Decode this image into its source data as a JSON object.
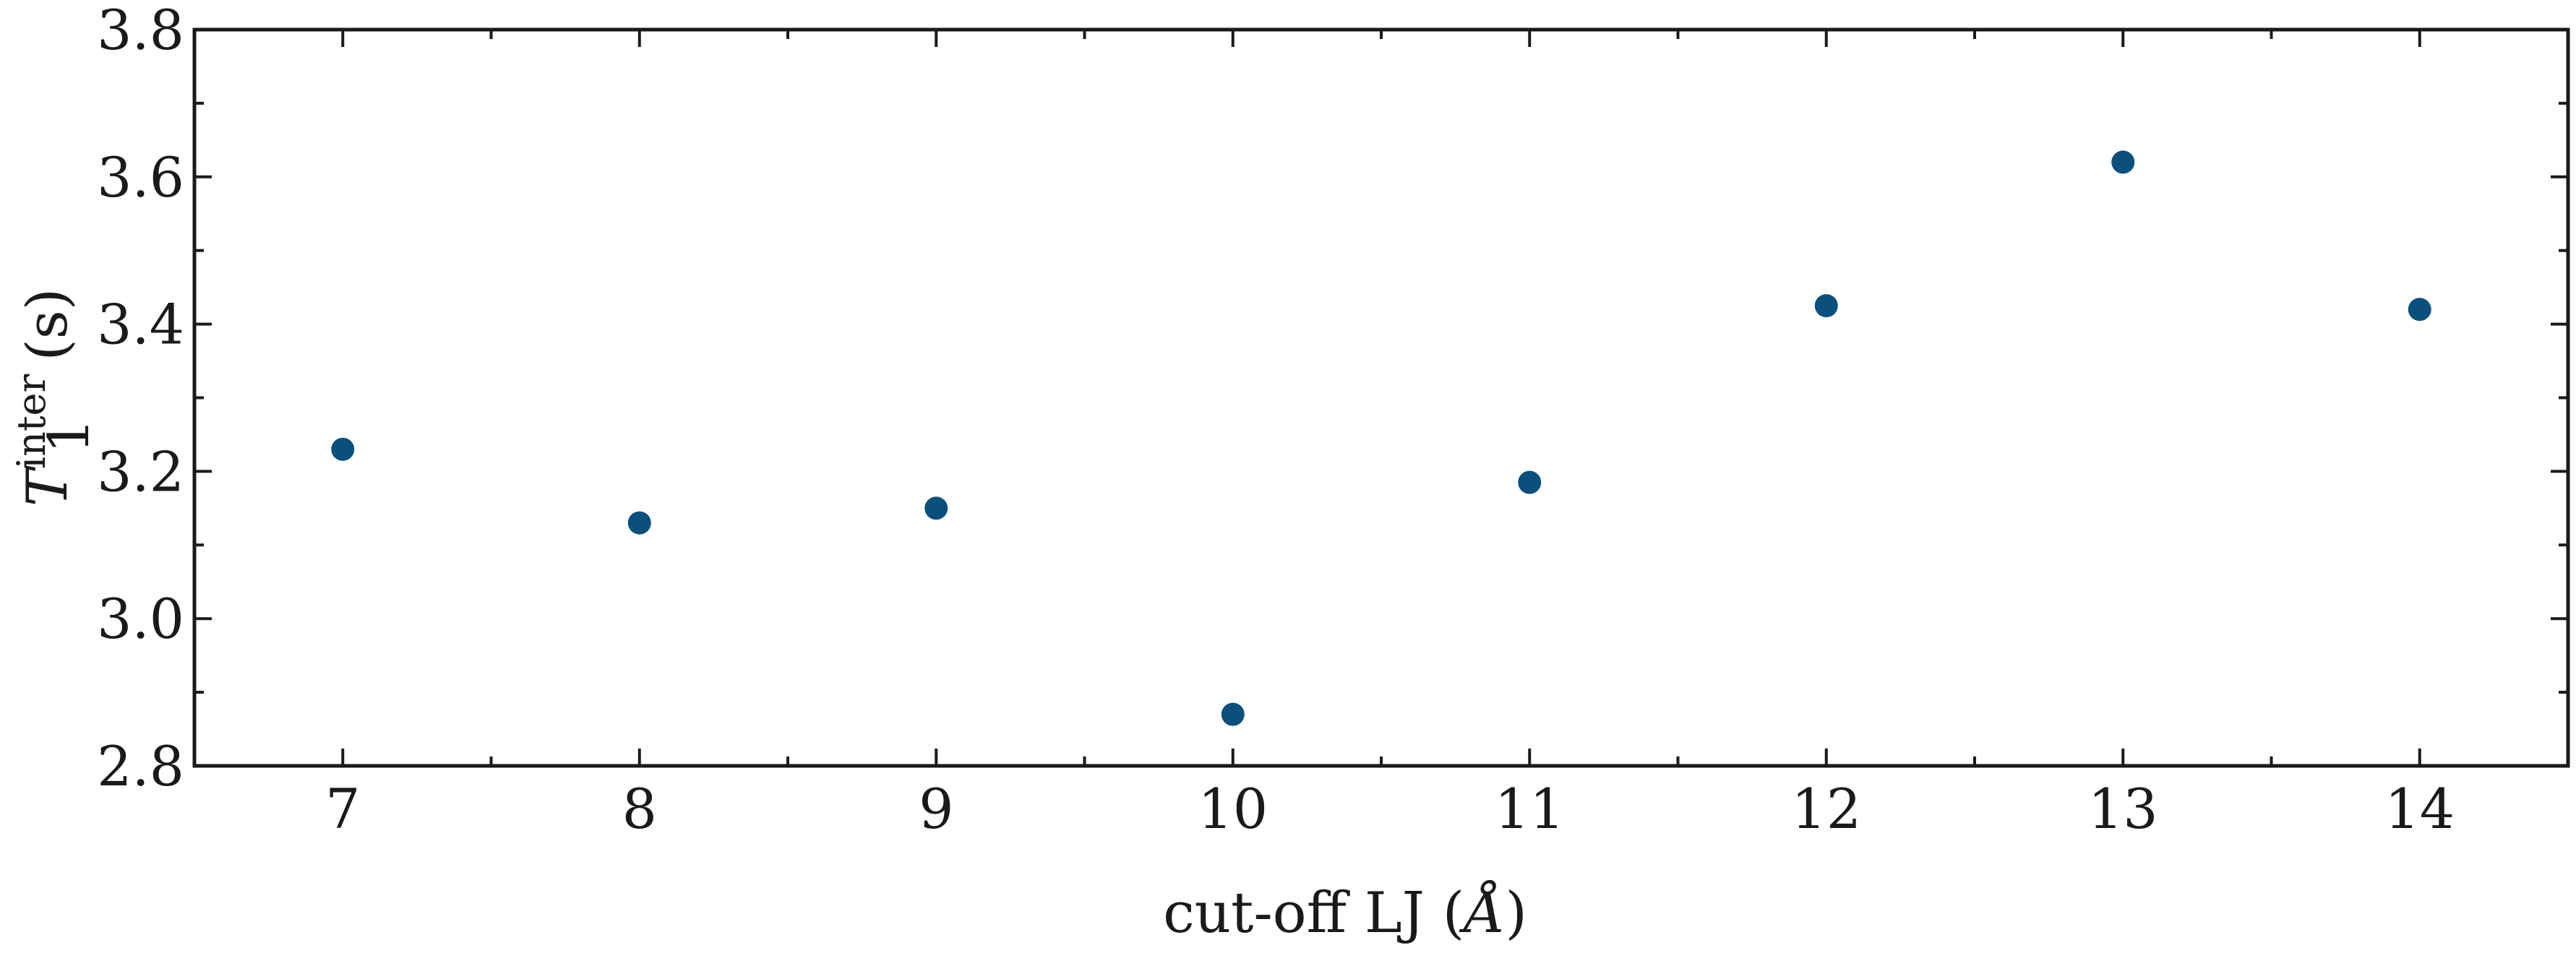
{
  "chart_data": {
    "type": "scatter",
    "xlabel": "cut-off LJ (Å)",
    "xlabel_parts": {
      "text": "cut-off LJ (",
      "unit": "Å",
      "close": ")"
    },
    "ylabel": "T_1^inter (s)",
    "ylabel_parts": {
      "symbol": "T",
      "subscript": "1",
      "superscript": "inter",
      "unit": "(s)"
    },
    "xlim": [
      6.5,
      14.5
    ],
    "ylim": [
      2.8,
      3.8
    ],
    "x_ticks": [
      7,
      8,
      9,
      10,
      11,
      12,
      13,
      14
    ],
    "y_ticks": [
      "2.8",
      "3.0",
      "3.2",
      "3.4",
      "3.6",
      "3.8"
    ],
    "grid": false,
    "marker_color": "#0b4f7c",
    "series": [
      {
        "x": [
          7,
          8,
          9,
          10,
          11,
          12,
          13,
          14
        ],
        "y": [
          3.23,
          3.13,
          3.15,
          2.87,
          3.185,
          3.425,
          3.62,
          3.42
        ]
      }
    ]
  }
}
